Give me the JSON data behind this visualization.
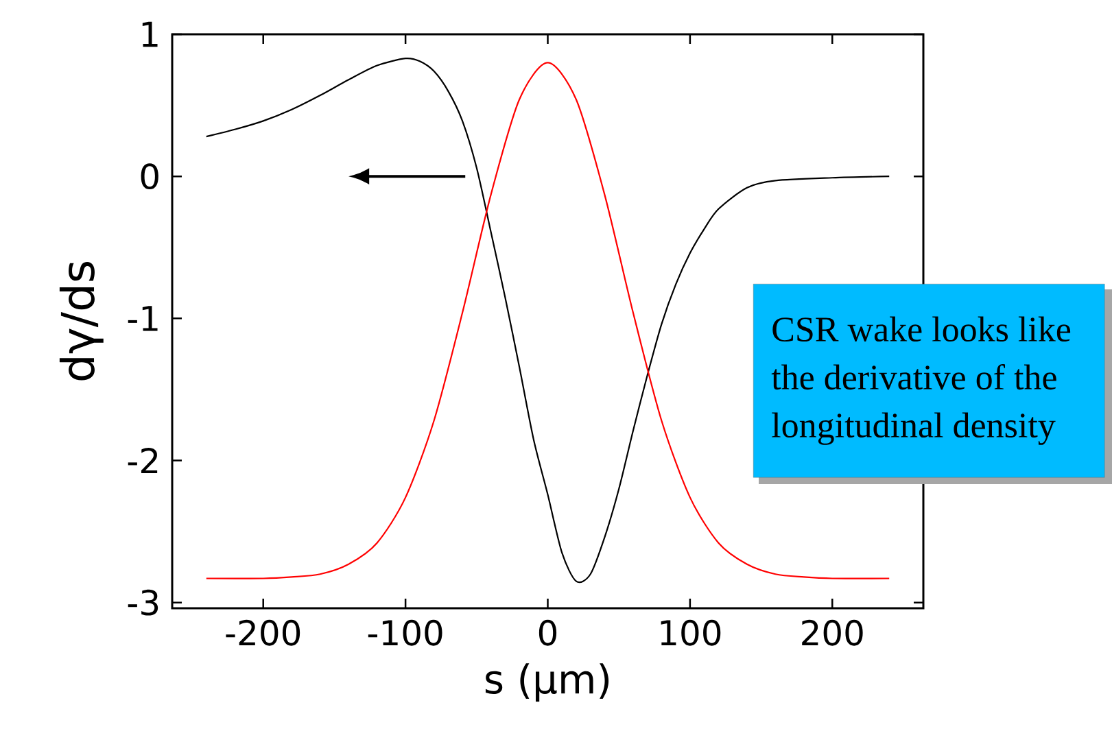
{
  "chart_data": {
    "type": "line",
    "xlabel": "s  (μm)",
    "ylabel": "dγ/ds",
    "xlim": [
      -264,
      264
    ],
    "ylim": [
      -3.04,
      1
    ],
    "xticks": [
      -200,
      -100,
      0,
      100,
      200
    ],
    "yticks": [
      -3,
      -2,
      -1,
      0,
      1
    ],
    "grid": false,
    "marker": "none",
    "line_style": "solid",
    "annotations": [
      "CSR wake looks like the derivative of the longitudinal density"
    ],
    "series": [
      {
        "color": "#000000",
        "x": [
          -240,
          -220,
          -200,
          -180,
          -160,
          -140,
          -120,
          -100,
          -90,
          -80,
          -70,
          -60,
          -50,
          -40,
          -30,
          -20,
          -10,
          0,
          10,
          20,
          30,
          40,
          50,
          60,
          70,
          80,
          90,
          100,
          110,
          120,
          140,
          160,
          200,
          240
        ],
        "values": [
          0.28,
          0.33,
          0.39,
          0.47,
          0.57,
          0.68,
          0.78,
          0.83,
          0.81,
          0.74,
          0.6,
          0.39,
          0.06,
          -0.39,
          -0.85,
          -1.34,
          -1.85,
          -2.24,
          -2.65,
          -2.85,
          -2.8,
          -2.54,
          -2.2,
          -1.79,
          -1.4,
          -1.04,
          -0.76,
          -0.54,
          -0.37,
          -0.23,
          -0.08,
          -0.03,
          -0.01,
          0
        ]
      },
      {
        "color": "#ff0000",
        "x": [
          -240,
          -200,
          -180,
          -160,
          -140,
          -120,
          -100,
          -80,
          -60,
          -40,
          -20,
          0,
          20,
          40,
          60,
          80,
          100,
          120,
          140,
          160,
          180,
          200,
          240
        ],
        "values": [
          -2.83,
          -2.83,
          -2.82,
          -2.8,
          -2.73,
          -2.58,
          -2.26,
          -1.72,
          -0.96,
          -0.13,
          0.54,
          0.8,
          0.54,
          -0.13,
          -0.96,
          -1.72,
          -2.26,
          -2.58,
          -2.73,
          -2.8,
          -2.82,
          -2.83,
          -2.83
        ]
      }
    ]
  }
}
